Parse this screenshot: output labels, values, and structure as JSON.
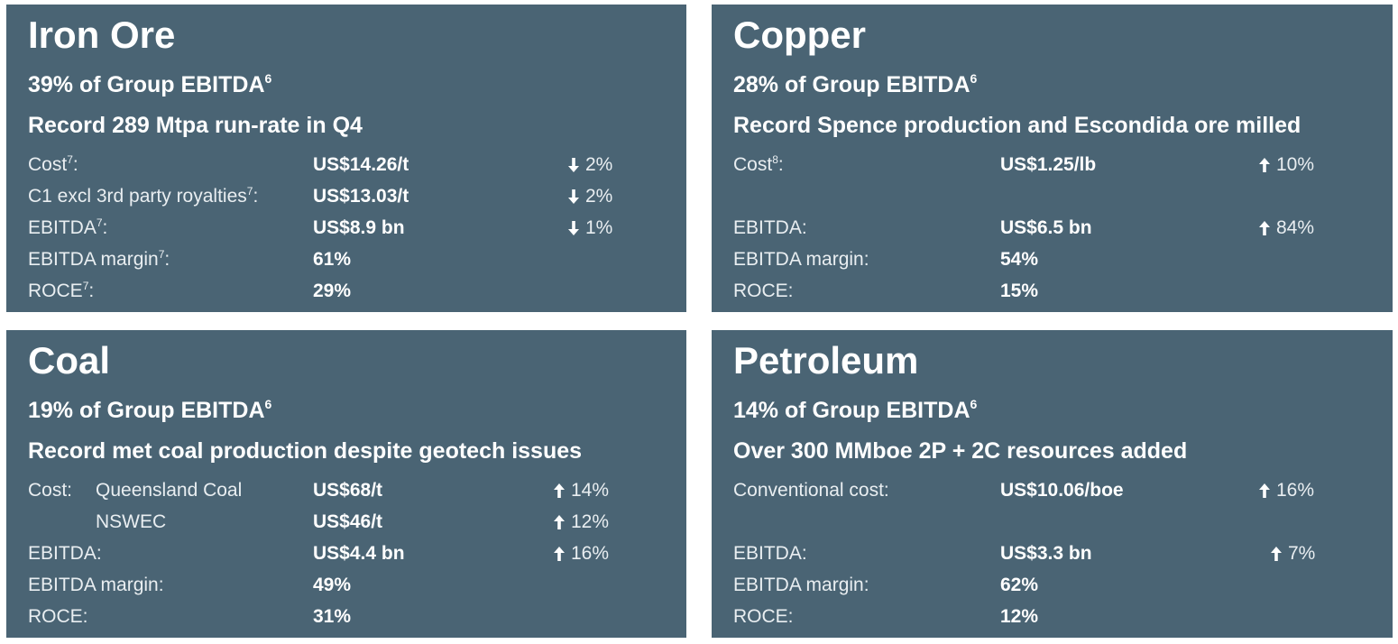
{
  "panels": [
    {
      "title": "Iron Ore",
      "share": "39% of Group EBITDA",
      "share_note": "6",
      "headline": "Record 289 Mtpa run-rate in Q4",
      "rows": [
        {
          "label": "Cost",
          "note": "7",
          "suffix": ":",
          "value": "US$14.26/t",
          "change": "2%",
          "direction": "down"
        },
        {
          "label": "C1 excl 3rd party royalties",
          "note": "7",
          "suffix": ":",
          "value": "US$13.03/t",
          "change": "2%",
          "direction": "down"
        },
        {
          "label": "EBITDA",
          "note": "7",
          "suffix": ":",
          "value": "US$8.9 bn",
          "change": "1%",
          "direction": "down"
        },
        {
          "label": "EBITDA margin",
          "note": "7",
          "suffix": ":",
          "value": "61%"
        },
        {
          "label": "ROCE",
          "note": "7",
          "suffix": ":",
          "value": "29%"
        }
      ]
    },
    {
      "title": "Copper",
      "share": "28% of Group EBITDA",
      "share_note": "6",
      "headline": "Record Spence production and Escondida ore milled",
      "rows": [
        {
          "label": "Cost",
          "note": "8",
          "suffix": ":",
          "value": "US$1.25/lb",
          "change": "10%",
          "direction": "up"
        },
        {
          "label": "EBITDA:",
          "value": "US$6.5 bn",
          "change": "84%",
          "direction": "up"
        },
        {
          "label": "EBITDA margin:",
          "value": "54%"
        },
        {
          "label": "ROCE:",
          "value": "15%"
        }
      ]
    },
    {
      "title": "Coal",
      "share": "19% of Group EBITDA",
      "share_note": "6",
      "headline": "Record met coal production despite geotech issues",
      "rows": [
        {
          "label": "Cost:",
          "sublabel": "Queensland Coal",
          "value": "US$68/t",
          "change": "14%",
          "direction": "up"
        },
        {
          "sublabel": "NSWEC",
          "value": "US$46/t",
          "change": "12%",
          "direction": "up"
        },
        {
          "label": "EBITDA:",
          "value": "US$4.4 bn",
          "change": "16%",
          "direction": "up"
        },
        {
          "label": "EBITDA margin:",
          "value": "49%"
        },
        {
          "label": "ROCE:",
          "value": "31%"
        }
      ]
    },
    {
      "title": "Petroleum",
      "share": "14% of Group EBITDA",
      "share_note": "6",
      "headline": "Over 300 MMboe 2P + 2C resources added",
      "rows": [
        {
          "label": "Conventional cost:",
          "value": "US$10.06/boe",
          "change": "16%",
          "direction": "up"
        },
        {
          "label": "EBITDA:",
          "value": "US$3.3 bn",
          "change": "7%",
          "direction": "up"
        },
        {
          "label": "EBITDA margin:",
          "value": "62%"
        },
        {
          "label": "ROCE:",
          "value": "12%"
        }
      ]
    }
  ],
  "colors": {
    "panel_bg": "#4a6474",
    "text": "#ffffff"
  }
}
